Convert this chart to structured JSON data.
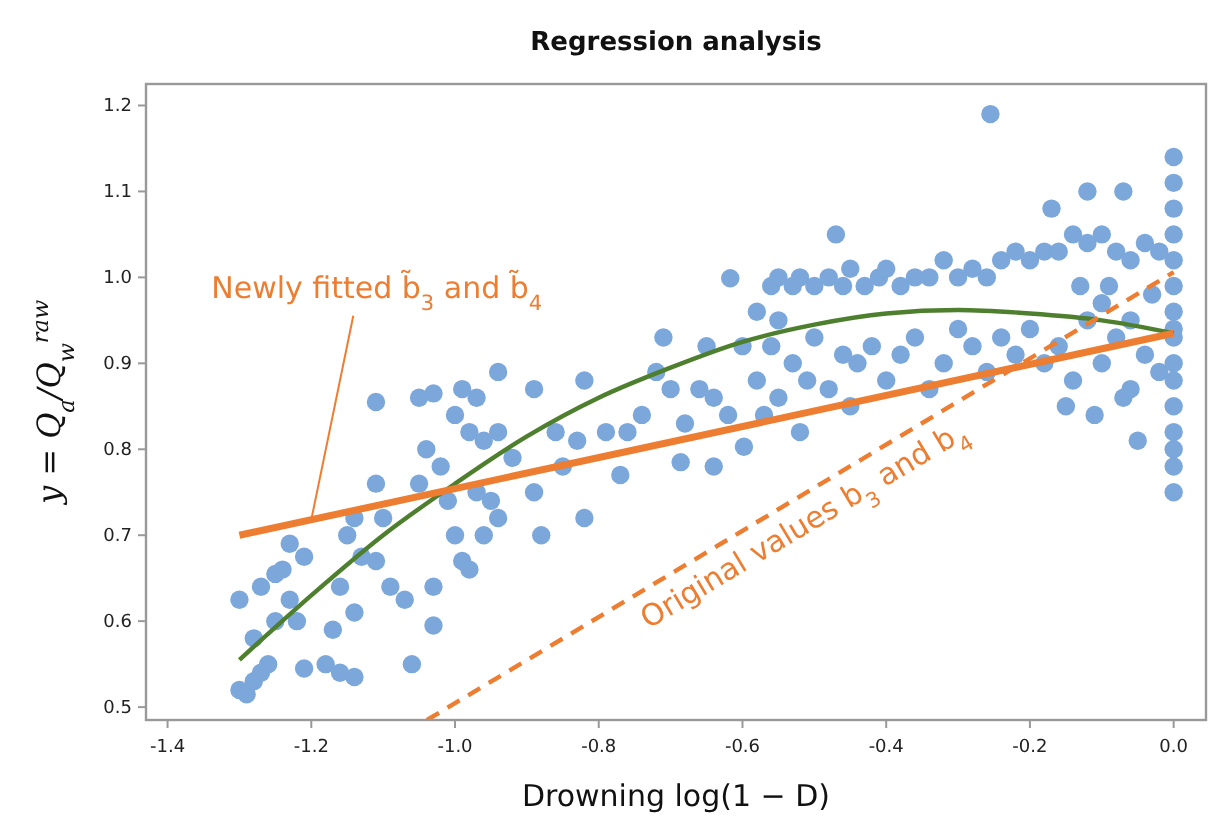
{
  "chart_data": {
    "type": "scatter",
    "title": "Regression analysis",
    "xlabel": "Drowning log(1 − D)",
    "ylabel": "y = Q$_{a}$/Q$_{w}$$^{raw}$",
    "xlim": [
      -1.43,
      0.045
    ],
    "ylim": [
      0.485,
      1.225
    ],
    "xticks": [
      {
        "value": -1.4,
        "label": "-1.4"
      },
      {
        "value": -1.2,
        "label": "-1.2"
      },
      {
        "value": -1,
        "label": "-1.0"
      },
      {
        "value": -0.8,
        "label": "-0.8"
      },
      {
        "value": -0.6,
        "label": "-0.6"
      },
      {
        "value": -0.4,
        "label": "-0.4"
      },
      {
        "value": -0.2,
        "label": "-0.2"
      },
      {
        "value": 0,
        "label": "0.0"
      }
    ],
    "yticks": [
      0.5,
      0.6,
      0.7,
      0.8,
      0.9,
      {
        "value": 1,
        "label": "1.0"
      },
      1.1,
      1.2
    ],
    "grid": false,
    "annotations": [
      {
        "text": "Newly fitted b̃$_{3}$ and b̃$_{4}$",
        "x": -1.2,
        "y": 0.718
      },
      {
        "text": "Original values b$_{3}$ and b$_{4}$",
        "x": -0.53,
        "y": 0.74
      }
    ],
    "series": [
      {
        "marker": "circle",
        "color": "#7ba7da",
        "x": [
          -1.3,
          -1.29,
          -1.28,
          -1.27,
          -1.26,
          -1.28,
          -1.3,
          -1.27,
          -1.25,
          -1.24,
          -1.23,
          -1.21,
          -1.25,
          -1.23,
          -1.22,
          -1.21,
          -1.18,
          -1.16,
          -1.14,
          -1.17,
          -1.16,
          -1.15,
          -1.14,
          -1.13,
          -1.14,
          -1.11,
          -1.1,
          -1.11,
          -1.11,
          -1.09,
          -1.06,
          -1.07,
          -1.05,
          -1.04,
          -1.05,
          -1.03,
          -1.03,
          -1.03,
          -1.02,
          -1.01,
          -1,
          -0.99,
          -0.98,
          -0.97,
          -1,
          -0.99,
          -0.98,
          -0.97,
          -0.96,
          -0.95,
          -0.94,
          -0.94,
          -0.94,
          -0.96,
          -0.92,
          -0.89,
          -0.89,
          -0.88,
          -0.86,
          -0.85,
          -0.83,
          -0.82,
          -0.82,
          -0.79,
          -0.77,
          -0.76,
          -0.74,
          -0.72,
          -0.71,
          -0.7,
          -0.686,
          -0.68,
          -0.66,
          -0.64,
          -0.617,
          -0.62,
          -0.598,
          -0.64,
          -0.58,
          -0.56,
          -0.55,
          -0.53,
          -0.52,
          -0.5,
          -0.48,
          -0.46,
          -0.45,
          -0.43,
          -0.41,
          -0.4,
          -0.38,
          -0.36,
          -0.34,
          -0.32,
          -0.3,
          -0.28,
          -0.26,
          -0.24,
          -0.22,
          -0.2,
          -0.18,
          -0.16,
          -0.14,
          -0.12,
          -0.1,
          -0.08,
          -0.06,
          -0.04,
          -0.02,
          -0.47,
          -0.12,
          -0.17,
          -0.07,
          -0.255,
          -0.58,
          -0.56,
          -0.55,
          -0.53,
          -0.51,
          -0.5,
          -0.48,
          -0.46,
          -0.44,
          -0.42,
          -0.4,
          -0.38,
          -0.36,
          -0.34,
          -0.32,
          -0.3,
          -0.28,
          -0.26,
          -0.24,
          -0.22,
          -0.2,
          -0.18,
          -0.16,
          -0.14,
          -0.12,
          -0.1,
          -0.08,
          -0.06,
          -0.04,
          -0.02,
          -0.15,
          -0.11,
          -0.07,
          -0.05,
          -0.1,
          -0.13,
          -0.03,
          -0.52,
          -0.57,
          -0.45,
          -0.6,
          -0.65,
          -0.55,
          -0.06,
          -0.09,
          0,
          0,
          0,
          0,
          0,
          0,
          0,
          0,
          0,
          0,
          0,
          0,
          0,
          0,
          0,
          0
        ],
        "values": [
          0.52,
          0.515,
          0.53,
          0.54,
          0.55,
          0.58,
          0.625,
          0.64,
          0.655,
          0.66,
          0.69,
          0.675,
          0.6,
          0.625,
          0.6,
          0.545,
          0.55,
          0.54,
          0.535,
          0.59,
          0.64,
          0.7,
          0.72,
          0.675,
          0.61,
          0.67,
          0.72,
          0.76,
          0.855,
          0.64,
          0.55,
          0.625,
          0.76,
          0.8,
          0.86,
          0.865,
          0.64,
          0.595,
          0.78,
          0.74,
          0.84,
          0.87,
          0.82,
          0.86,
          0.7,
          0.67,
          0.66,
          0.75,
          0.81,
          0.74,
          0.82,
          0.72,
          0.89,
          0.7,
          0.79,
          0.87,
          0.75,
          0.7,
          0.82,
          0.78,
          0.81,
          0.88,
          0.72,
          0.82,
          0.77,
          0.82,
          0.84,
          0.89,
          0.93,
          0.87,
          0.785,
          0.83,
          0.87,
          0.86,
          0.999,
          0.84,
          0.803,
          0.78,
          0.96,
          0.99,
          1,
          0.99,
          1,
          0.99,
          1,
          0.99,
          1.01,
          0.99,
          1,
          1.01,
          0.99,
          1,
          1,
          1.02,
          1,
          1.01,
          1,
          1.02,
          1.03,
          1.02,
          1.03,
          1.03,
          1.05,
          1.04,
          1.05,
          1.03,
          1.02,
          1.04,
          1.03,
          1.05,
          1.1,
          1.08,
          1.1,
          1.19,
          0.88,
          0.92,
          0.86,
          0.9,
          0.88,
          0.93,
          0.87,
          0.91,
          0.9,
          0.92,
          0.88,
          0.91,
          0.93,
          0.87,
          0.9,
          0.94,
          0.92,
          0.89,
          0.93,
          0.91,
          0.94,
          0.9,
          0.92,
          0.88,
          0.95,
          0.9,
          0.93,
          0.87,
          0.91,
          0.89,
          0.85,
          0.84,
          0.86,
          0.81,
          0.97,
          0.99,
          0.98,
          0.82,
          0.84,
          0.85,
          0.92,
          0.92,
          0.95,
          0.95,
          0.99,
          0.75,
          0.78,
          0.82,
          0.85,
          0.88,
          0.9,
          0.93,
          0.96,
          0.99,
          1.02,
          1.05,
          1.08,
          1.11,
          1.14,
          0.8,
          0.94
        ]
      },
      {
        "type": "line",
        "color": "#4e7f2e",
        "x": [
          -1.3,
          -1.2,
          -1.1,
          -1,
          -0.9,
          -0.8,
          -0.7,
          -0.6,
          -0.5,
          -0.4,
          -0.3,
          -0.2,
          -0.1,
          0
        ],
        "values": [
          0.555,
          0.63,
          0.7,
          0.76,
          0.815,
          0.86,
          0.895,
          0.925,
          0.945,
          0.958,
          0.962,
          0.958,
          0.95,
          0.935
        ]
      },
      {
        "type": "line",
        "color": "#ed7d31",
        "x": [
          -1.3,
          0
        ],
        "values": [
          0.7,
          0.935
        ]
      },
      {
        "type": "line",
        "color": "#ed7d31",
        "line_style": "dashed",
        "x": [
          -1.039,
          0
        ],
        "values": [
          0.485,
          1.006
        ]
      }
    ]
  }
}
